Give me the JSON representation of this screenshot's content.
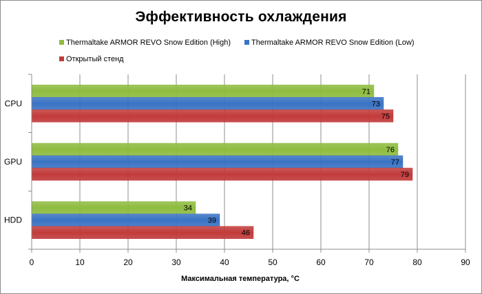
{
  "chart_data": {
    "type": "bar",
    "orientation": "horizontal",
    "title": "Эффективность охлаждения",
    "xlabel": "Максимальная  температура, °C",
    "ylabel": "",
    "categories": [
      "CPU",
      "GPU",
      "HDD"
    ],
    "series": [
      {
        "name": "Thermaltake ARMOR REVO Snow Edition (High)",
        "color": "#8fbc40",
        "values": [
          71,
          76,
          34
        ]
      },
      {
        "name": "Thermaltake ARMOR REVO Snow Edition (Low)",
        "color": "#3a73c4",
        "values": [
          73,
          77,
          39
        ]
      },
      {
        "name": "Открытый стенд",
        "color": "#c23b3b",
        "values": [
          75,
          79,
          46
        ]
      }
    ],
    "xlim": [
      0,
      90
    ],
    "xticks": [
      0,
      10,
      20,
      30,
      40,
      50,
      60,
      70,
      80,
      90
    ],
    "grid": true,
    "legend_position": "top"
  }
}
